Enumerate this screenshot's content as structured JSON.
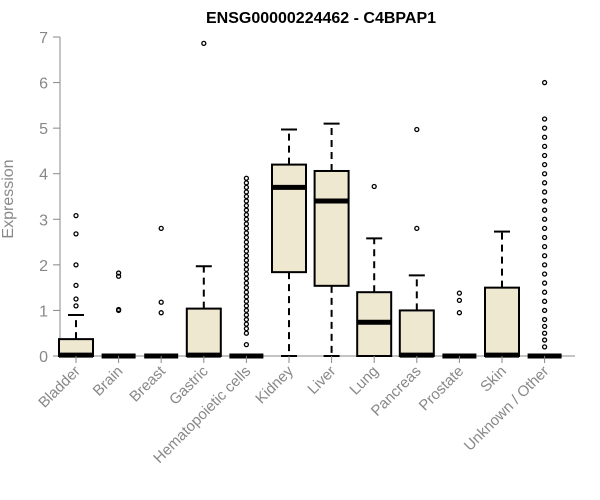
{
  "chart_data": {
    "type": "box",
    "title": "ENSG00000224462 - C4BPAP1",
    "xlabel": "",
    "ylabel": "Expression",
    "ylim": [
      0,
      7
    ],
    "yticks": [
      0,
      1,
      2,
      3,
      4,
      5,
      6,
      7
    ],
    "box_fill": "#efe8d0",
    "axis_color": "#888888",
    "categories": [
      "Bladder",
      "Brain",
      "Breast",
      "Gastric",
      "Hematopoietic cells",
      "Kidney",
      "Liver",
      "Lung",
      "Pancreas",
      "Prostate",
      "Skin",
      "Unknown / Other"
    ],
    "boxes": [
      {
        "q1": 0,
        "median": 0.02,
        "q3": 0.37,
        "wlo": 0,
        "whi": 0.9,
        "outliers": [
          1.1,
          1.25,
          1.55,
          2.0,
          2.68,
          3.08
        ]
      },
      {
        "q1": 0,
        "median": 0,
        "q3": 0,
        "wlo": 0,
        "whi": 0,
        "outliers": [
          1.0,
          1.02,
          1.75,
          1.82
        ]
      },
      {
        "q1": 0,
        "median": 0,
        "q3": 0,
        "wlo": 0,
        "whi": 0,
        "outliers": [
          0.95,
          1.18,
          2.8
        ]
      },
      {
        "q1": 0,
        "median": 0.02,
        "q3": 1.04,
        "wlo": 0,
        "whi": 1.97,
        "outliers": [
          6.86
        ]
      },
      {
        "q1": 0,
        "median": 0,
        "q3": 0,
        "wlo": 0,
        "whi": 0,
        "outliers": [
          0.25,
          0.5,
          0.6,
          0.7,
          0.8,
          0.9,
          1.0,
          1.1,
          1.2,
          1.3,
          1.4,
          1.5,
          1.6,
          1.7,
          1.8,
          1.9,
          2.0,
          2.1,
          2.2,
          2.3,
          2.4,
          2.5,
          2.6,
          2.7,
          2.8,
          2.9,
          3.0,
          3.1,
          3.2,
          3.3,
          3.4,
          3.5,
          3.6,
          3.7,
          3.8,
          3.9
        ]
      },
      {
        "q1": 1.84,
        "median": 3.7,
        "q3": 4.2,
        "wlo": 0,
        "whi": 4.97,
        "outliers": []
      },
      {
        "q1": 1.54,
        "median": 3.4,
        "q3": 4.06,
        "wlo": 0,
        "whi": 5.1,
        "outliers": []
      },
      {
        "q1": 0,
        "median": 0.74,
        "q3": 1.4,
        "wlo": 0,
        "whi": 2.58,
        "outliers": [
          3.72
        ]
      },
      {
        "q1": 0,
        "median": 0.02,
        "q3": 1.0,
        "wlo": 0,
        "whi": 1.77,
        "outliers": [
          2.8,
          4.97
        ]
      },
      {
        "q1": 0,
        "median": 0,
        "q3": 0,
        "wlo": 0,
        "whi": 0,
        "outliers": [
          0.95,
          1.22,
          1.38
        ]
      },
      {
        "q1": 0,
        "median": 0.02,
        "q3": 1.5,
        "wlo": 0,
        "whi": 2.73,
        "outliers": []
      },
      {
        "q1": 0,
        "median": 0,
        "q3": 0,
        "wlo": 0,
        "whi": 0,
        "outliers": [
          0.2,
          0.35,
          0.5,
          0.65,
          0.8,
          1.0,
          1.2,
          1.4,
          1.6,
          1.8,
          2.0,
          2.2,
          2.4,
          2.6,
          2.8,
          3.0,
          3.2,
          3.4,
          3.6,
          3.8,
          4.0,
          4.2,
          4.4,
          4.6,
          4.8,
          5.0,
          5.2,
          6.0
        ]
      }
    ]
  }
}
